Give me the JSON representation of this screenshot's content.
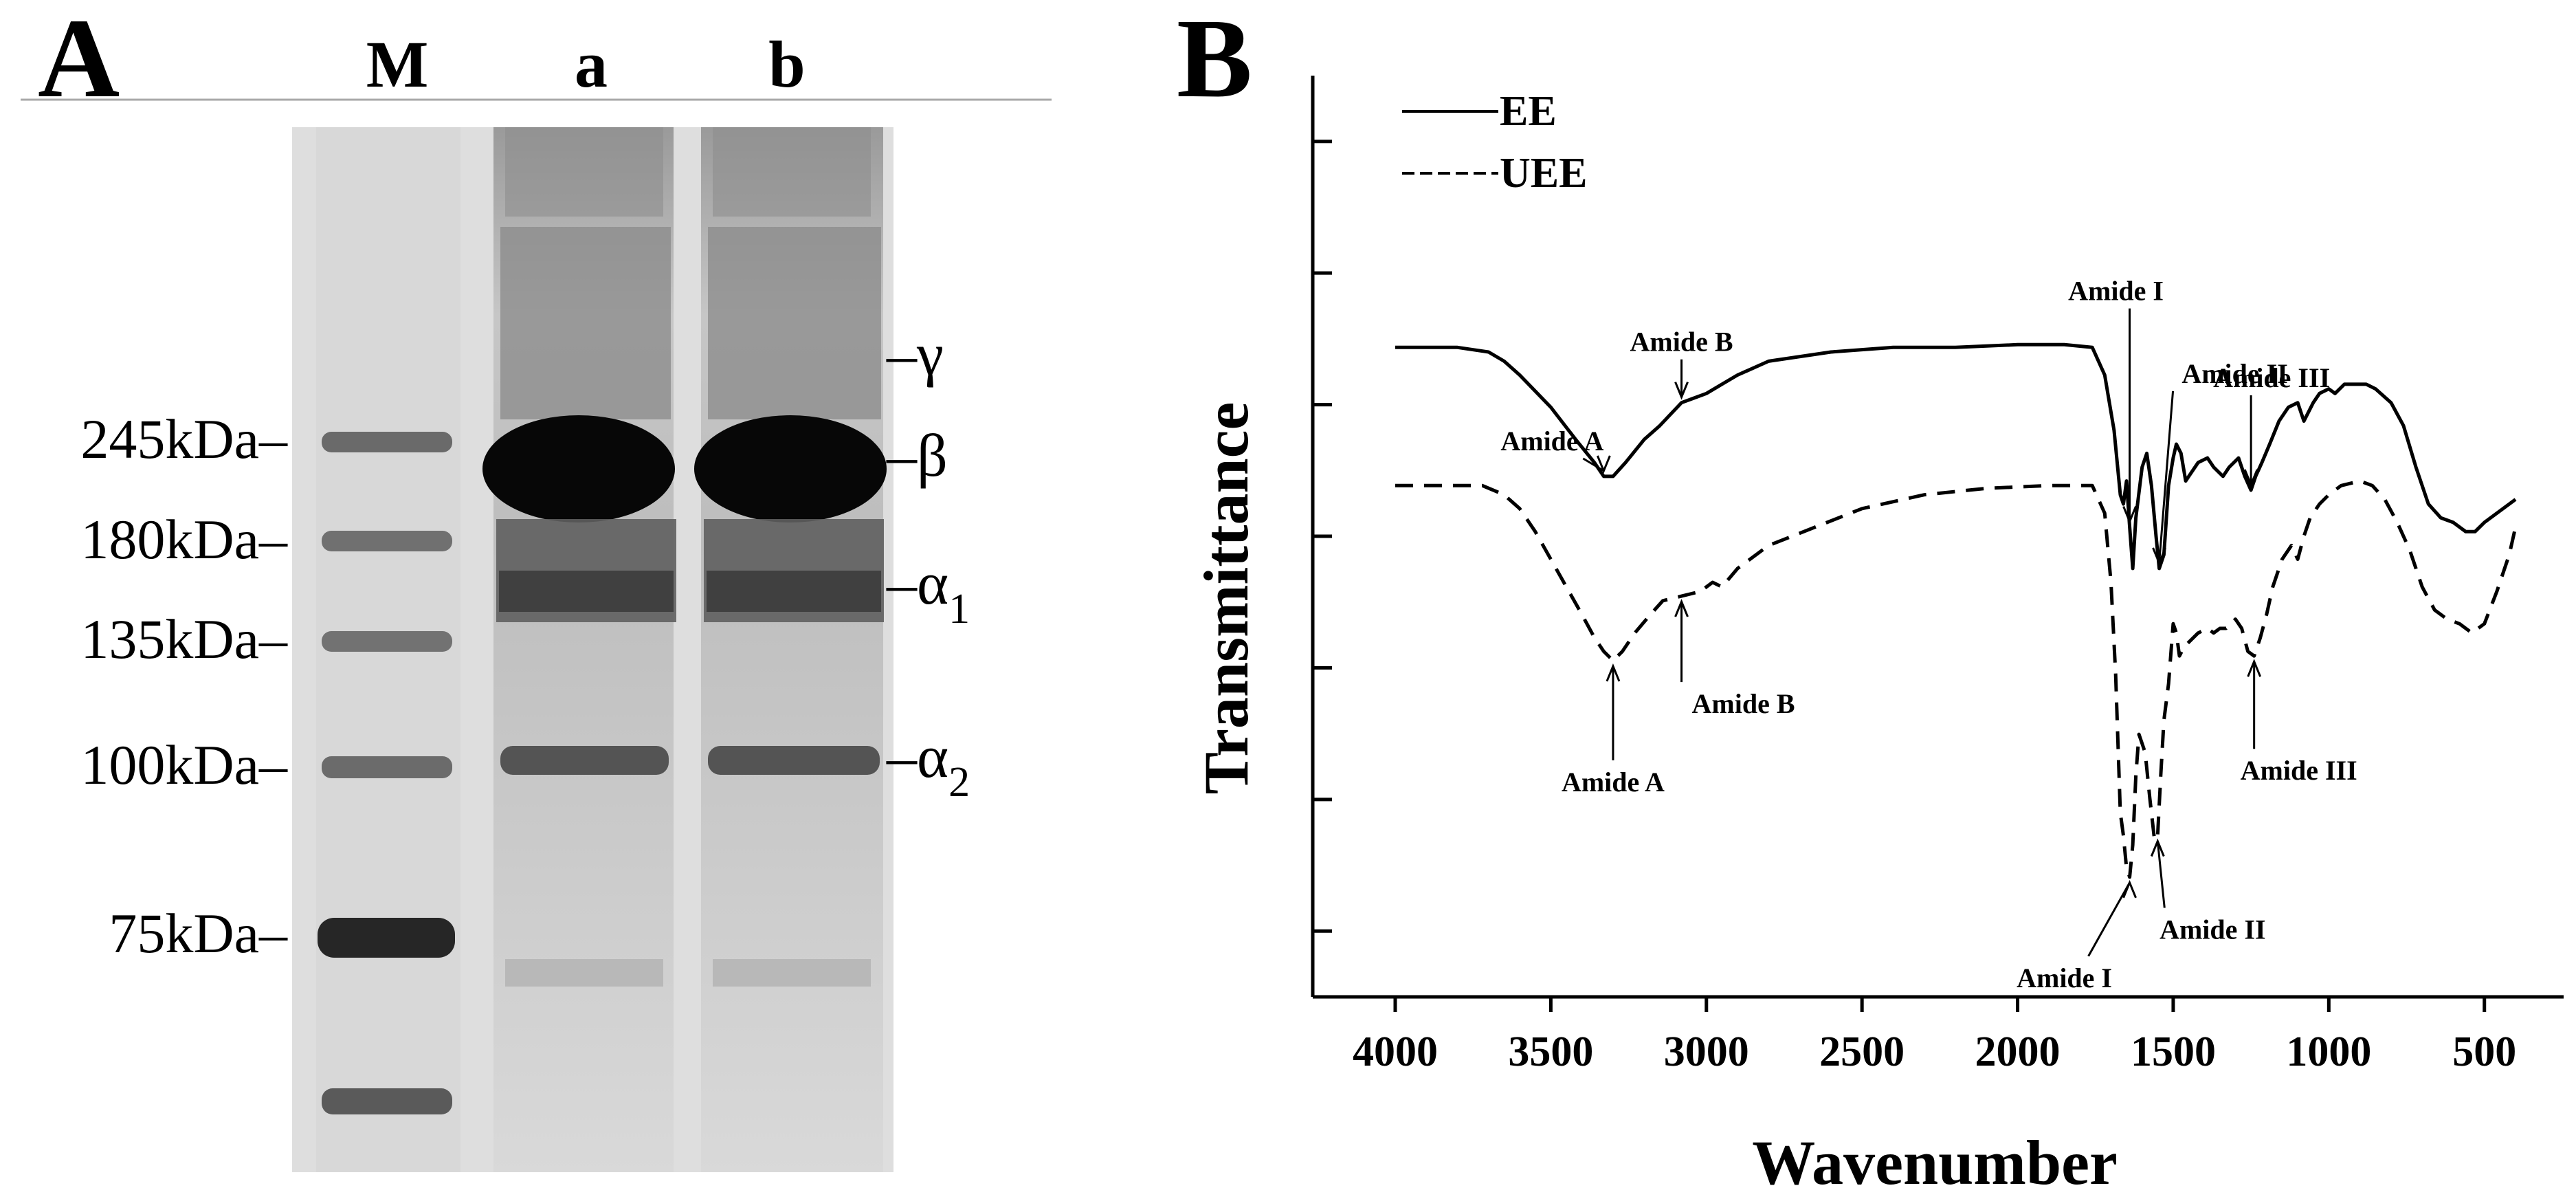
{
  "panel_a": {
    "label": "A",
    "lanes": [
      "M",
      "a",
      "b"
    ],
    "markers": [
      "245kDa–",
      "180kDa–",
      "135kDa–",
      "100kDa–",
      "75kDa–"
    ],
    "chains": [
      {
        "sym": "–γ",
        "sub": ""
      },
      {
        "sym": "–β",
        "sub": ""
      },
      {
        "sym": "–α",
        "sub": "1"
      },
      {
        "sym": "–α",
        "sub": "2"
      }
    ]
  },
  "panel_b": {
    "label": "B",
    "chart_data": {
      "type": "line",
      "xlabel": "Wavenumber",
      "ylabel": "Transmittance",
      "xlim": [
        4000,
        400
      ],
      "xticks": [
        "4000",
        "3500",
        "3000",
        "2500",
        "2000",
        "1500",
        "1000",
        "500"
      ],
      "ytick_count": 7,
      "x_reversed": true,
      "legend_position": "top-left",
      "series": [
        {
          "name": "EE",
          "style": "solid",
          "color": "#000000",
          "points": [
            [
              4000,
              0.705
            ],
            [
              3800,
              0.705
            ],
            [
              3700,
              0.7
            ],
            [
              3650,
              0.69
            ],
            [
              3600,
              0.675
            ],
            [
              3500,
              0.64
            ],
            [
              3420,
              0.605
            ],
            [
              3360,
              0.58
            ],
            [
              3330,
              0.565
            ],
            [
              3300,
              0.565
            ],
            [
              3260,
              0.58
            ],
            [
              3200,
              0.605
            ],
            [
              3150,
              0.62
            ],
            [
              3080,
              0.645
            ],
            [
              3040,
              0.65
            ],
            [
              3000,
              0.655
            ],
            [
              2950,
              0.665
            ],
            [
              2900,
              0.675
            ],
            [
              2800,
              0.69
            ],
            [
              2600,
              0.7
            ],
            [
              2400,
              0.705
            ],
            [
              2300,
              0.705
            ],
            [
              2200,
              0.705
            ],
            [
              2000,
              0.708
            ],
            [
              1850,
              0.708
            ],
            [
              1760,
              0.705
            ],
            [
              1720,
              0.675
            ],
            [
              1690,
              0.615
            ],
            [
              1670,
              0.545
            ],
            [
              1660,
              0.535
            ],
            [
              1650,
              0.56
            ],
            [
              1640,
              0.51
            ],
            [
              1630,
              0.465
            ],
            [
              1620,
              0.52
            ],
            [
              1600,
              0.575
            ],
            [
              1585,
              0.59
            ],
            [
              1570,
              0.555
            ],
            [
              1555,
              0.5
            ],
            [
              1545,
              0.465
            ],
            [
              1530,
              0.48
            ],
            [
              1515,
              0.555
            ],
            [
              1500,
              0.585
            ],
            [
              1490,
              0.6
            ],
            [
              1475,
              0.59
            ],
            [
              1460,
              0.56
            ],
            [
              1450,
              0.565
            ],
            [
              1420,
              0.58
            ],
            [
              1390,
              0.585
            ],
            [
              1370,
              0.575
            ],
            [
              1340,
              0.565
            ],
            [
              1320,
              0.575
            ],
            [
              1290,
              0.585
            ],
            [
              1270,
              0.565
            ],
            [
              1250,
              0.55
            ],
            [
              1235,
              0.565
            ],
            [
              1215,
              0.58
            ],
            [
              1190,
              0.6
            ],
            [
              1160,
              0.625
            ],
            [
              1130,
              0.64
            ],
            [
              1100,
              0.645
            ],
            [
              1080,
              0.625
            ],
            [
              1050,
              0.645
            ],
            [
              1030,
              0.655
            ],
            [
              1000,
              0.66
            ],
            [
              980,
              0.655
            ],
            [
              950,
              0.665
            ],
            [
              920,
              0.665
            ],
            [
              880,
              0.665
            ],
            [
              850,
              0.66
            ],
            [
              800,
              0.645
            ],
            [
              760,
              0.62
            ],
            [
              720,
              0.575
            ],
            [
              680,
              0.535
            ],
            [
              640,
              0.52
            ],
            [
              600,
              0.515
            ],
            [
              560,
              0.505
            ],
            [
              530,
              0.505
            ],
            [
              500,
              0.515
            ],
            [
              460,
              0.525
            ],
            [
              420,
              0.535
            ],
            [
              400,
              0.54
            ]
          ]
        },
        {
          "name": "UEE",
          "style": "dashed",
          "color": "#000000",
          "points": [
            [
              4000,
              0.555
            ],
            [
              3720,
              0.555
            ],
            [
              3650,
              0.545
            ],
            [
              3600,
              0.53
            ],
            [
              3550,
              0.505
            ],
            [
              3500,
              0.475
            ],
            [
              3450,
              0.445
            ],
            [
              3400,
              0.415
            ],
            [
              3360,
              0.39
            ],
            [
              3330,
              0.375
            ],
            [
              3300,
              0.365
            ],
            [
              3270,
              0.375
            ],
            [
              3230,
              0.395
            ],
            [
              3180,
              0.415
            ],
            [
              3140,
              0.43
            ],
            [
              3080,
              0.435
            ],
            [
              3020,
              0.44
            ],
            [
              2980,
              0.45
            ],
            [
              2950,
              0.445
            ],
            [
              2900,
              0.465
            ],
            [
              2800,
              0.49
            ],
            [
              2650,
              0.51
            ],
            [
              2500,
              0.53
            ],
            [
              2300,
              0.545
            ],
            [
              2100,
              0.552
            ],
            [
              1900,
              0.555
            ],
            [
              1760,
              0.555
            ],
            [
              1720,
              0.525
            ],
            [
              1700,
              0.45
            ],
            [
              1685,
              0.35
            ],
            [
              1670,
              0.2
            ],
            [
              1660,
              0.175
            ],
            [
              1650,
              0.14
            ],
            [
              1640,
              0.13
            ],
            [
              1630,
              0.165
            ],
            [
              1620,
              0.24
            ],
            [
              1610,
              0.285
            ],
            [
              1600,
              0.275
            ],
            [
              1590,
              0.265
            ],
            [
              1575,
              0.215
            ],
            [
              1560,
              0.17
            ],
            [
              1550,
              0.175
            ],
            [
              1540,
              0.24
            ],
            [
              1530,
              0.3
            ],
            [
              1515,
              0.34
            ],
            [
              1500,
              0.405
            ],
            [
              1490,
              0.395
            ],
            [
              1480,
              0.37
            ],
            [
              1465,
              0.38
            ],
            [
              1450,
              0.385
            ],
            [
              1420,
              0.395
            ],
            [
              1390,
              0.4
            ],
            [
              1370,
              0.395
            ],
            [
              1350,
              0.4
            ],
            [
              1330,
              0.4
            ],
            [
              1300,
              0.41
            ],
            [
              1280,
              0.4
            ],
            [
              1260,
              0.375
            ],
            [
              1240,
              0.37
            ],
            [
              1220,
              0.39
            ],
            [
              1200,
              0.415
            ],
            [
              1180,
              0.445
            ],
            [
              1150,
              0.475
            ],
            [
              1120,
              0.49
            ],
            [
              1100,
              0.475
            ],
            [
              1080,
              0.5
            ],
            [
              1060,
              0.52
            ],
            [
              1030,
              0.535
            ],
            [
              1000,
              0.545
            ],
            [
              960,
              0.555
            ],
            [
              900,
              0.56
            ],
            [
              860,
              0.555
            ],
            [
              820,
              0.54
            ],
            [
              780,
              0.515
            ],
            [
              740,
              0.485
            ],
            [
              700,
              0.445
            ],
            [
              660,
              0.42
            ],
            [
              620,
              0.41
            ],
            [
              580,
              0.405
            ],
            [
              540,
              0.395
            ],
            [
              500,
              0.405
            ],
            [
              460,
              0.44
            ],
            [
              420,
              0.48
            ],
            [
              400,
              0.51
            ]
          ]
        }
      ],
      "annotations": [
        {
          "text": "Amide A",
          "series": "EE",
          "x": 3330
        },
        {
          "text": "Amide B",
          "series": "EE",
          "x": 3080
        },
        {
          "text": "Amide I",
          "series": "EE",
          "x": 1640
        },
        {
          "text": "Amide II",
          "series": "EE",
          "x": 1545
        },
        {
          "text": "Amide III",
          "series": "EE",
          "x": 1250
        },
        {
          "text": "Amide A",
          "series": "UEE",
          "x": 3300
        },
        {
          "text": "Amide B",
          "series": "UEE",
          "x": 3080
        },
        {
          "text": "Amide I",
          "series": "UEE",
          "x": 1640
        },
        {
          "text": "Amide II",
          "series": "UEE",
          "x": 1550
        },
        {
          "text": "Amide III",
          "series": "UEE",
          "x": 1240
        }
      ]
    }
  }
}
